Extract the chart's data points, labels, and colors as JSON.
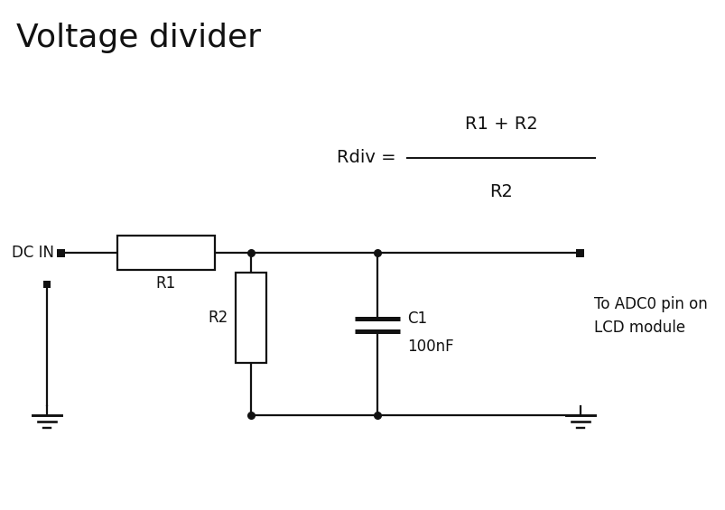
{
  "title": "Voltage divider",
  "title_fontsize": 26,
  "title_fontweight": "normal",
  "bg_color": "#ffffff",
  "line_color": "#111111",
  "line_width": 1.6,
  "dot_size": 5.5,
  "formula_left": "Rdiv = ",
  "formula_numerator": "R1 + R2",
  "formula_denominator": "R2",
  "label_R1": "R1",
  "label_R2": "R2",
  "label_C1": "C1",
  "label_100nF": "100nF",
  "label_DC_IN": "DC IN",
  "label_ADC": "To ADC0 pin on\nLCD module",
  "font_size_labels": 12,
  "font_size_formula": 14
}
